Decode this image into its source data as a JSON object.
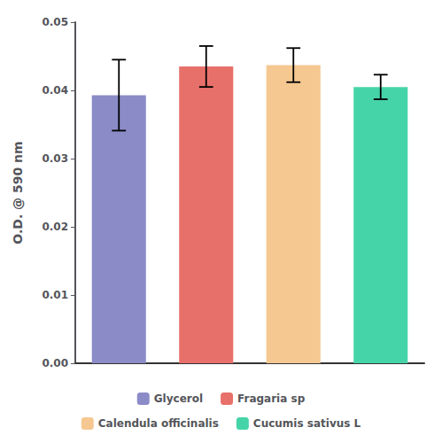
{
  "chart_data": {
    "type": "bar",
    "categories": [
      "Glycerol",
      "Fragaria sp",
      "Calendula officinalis",
      "Cucumis sativus L"
    ],
    "values": [
      0.0393,
      0.0435,
      0.0437,
      0.0405
    ],
    "errors": [
      0.0052,
      0.003,
      0.0025,
      0.0018
    ],
    "colors": [
      "#8B8BC8",
      "#E8706A",
      "#F5C891",
      "#45D4A8"
    ],
    "ylabel": "O.D. @ 590 nm",
    "ylim": [
      0.0,
      0.05
    ],
    "yticks": [
      {
        "value": 0,
        "label": "0.00"
      },
      0.01,
      0.02,
      0.03,
      0.04,
      0.05
    ],
    "tick_labels": "y",
    "legend": "bottom",
    "grid": false
  }
}
